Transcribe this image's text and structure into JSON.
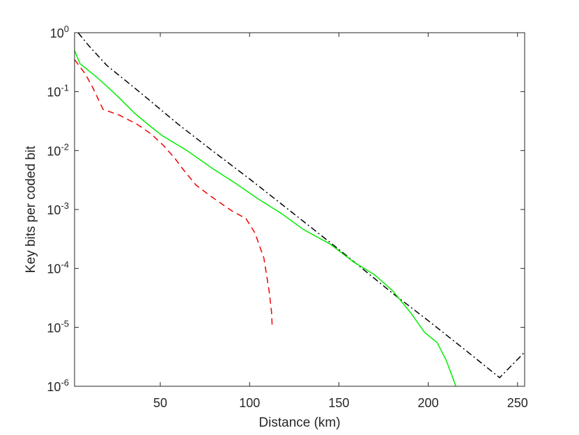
{
  "chart_data": {
    "type": "line",
    "title": "",
    "xlabel": "Distance (km)",
    "ylabel": "Key bits per coded bit",
    "xlim": [
      2,
      254
    ],
    "ylim": [
      1e-06,
      1
    ],
    "yscale": "log",
    "grid": false,
    "legend": "none",
    "x_ticks": [
      50,
      100,
      150,
      200,
      250
    ],
    "y_ticks": [
      {
        "value": 1.0,
        "base": "10",
        "exp": "0"
      },
      {
        "value": 0.1,
        "base": "10",
        "exp": "-1"
      },
      {
        "value": 0.01,
        "base": "10",
        "exp": "-2"
      },
      {
        "value": 0.001,
        "base": "10",
        "exp": "-3"
      },
      {
        "value": 0.0001,
        "base": "10",
        "exp": "-4"
      },
      {
        "value": 1e-05,
        "base": "10",
        "exp": "-5"
      },
      {
        "value": 1e-06,
        "base": "10",
        "exp": "-6"
      }
    ],
    "series": [
      {
        "style": "dashdot",
        "color": "#000000",
        "x": [
          4,
          10,
          20,
          40,
          60,
          80,
          100,
          120,
          150,
          180,
          200,
          220,
          240,
          254
        ],
        "y": [
          1.0,
          0.6,
          0.28,
          0.09,
          0.028,
          0.0095,
          0.0033,
          0.0011,
          0.00021,
          3.8e-05,
          1.3e-05,
          4.3e-06,
          1.4e-06,
          3.8e-06
        ]
      },
      {
        "style": "solid",
        "color": "#00ee00",
        "x": [
          2,
          5,
          15,
          25,
          36,
          45,
          51,
          65,
          80,
          92,
          105,
          118,
          130,
          145,
          158,
          170,
          180,
          190,
          198,
          205,
          210,
          215.5
        ],
        "y": [
          0.5,
          0.3,
          0.17,
          0.09,
          0.042,
          0.025,
          0.018,
          0.01,
          0.0048,
          0.0028,
          0.0015,
          0.00085,
          0.00046,
          0.00026,
          0.00013,
          7.8e-05,
          4.2e-05,
          1.8e-05,
          8.2e-06,
          5.5e-06,
          2.8e-06,
          1e-06
        ]
      },
      {
        "style": "dashed",
        "color": "#ee0000",
        "x": [
          2,
          8,
          12,
          18,
          27,
          37,
          45,
          52,
          58,
          63,
          70,
          78,
          90,
          98,
          103,
          108,
          111,
          112.3,
          112.7
        ],
        "y": [
          0.35,
          0.2,
          0.12,
          0.05,
          0.04,
          0.028,
          0.019,
          0.012,
          0.0075,
          0.0047,
          0.0026,
          0.0017,
          0.00095,
          0.0007,
          0.0004,
          0.00015,
          4e-05,
          1.8e-05,
          9.5e-06
        ]
      }
    ]
  }
}
